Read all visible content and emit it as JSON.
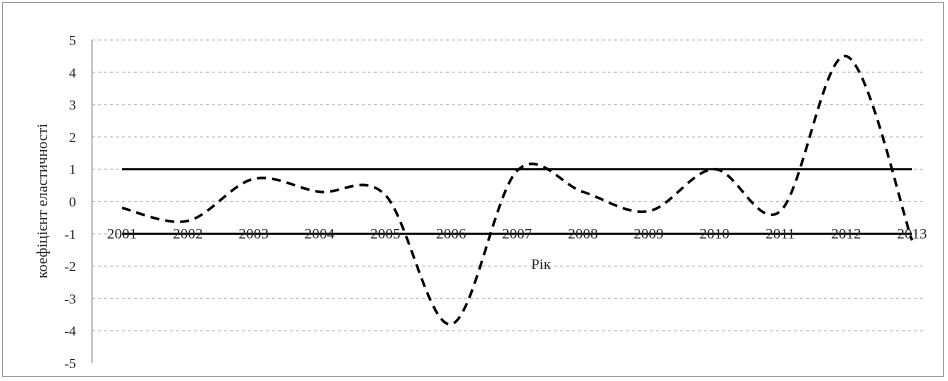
{
  "chart_data": {
    "type": "line",
    "title": "",
    "xlabel": "Рік",
    "ylabel": "коефіцієнт еластичності",
    "categories": [
      "2001",
      "2002",
      "2003",
      "2004",
      "2005",
      "2006",
      "2007",
      "2008",
      "2009",
      "2010",
      "2011",
      "2012",
      "2013"
    ],
    "ylim": [
      -5,
      5
    ],
    "yticks": [
      "5",
      "4",
      "3",
      "2",
      "1",
      "0",
      "-1",
      "-2",
      "-3",
      "-4",
      "-5"
    ],
    "grid": "horizontal dashed",
    "series": [
      {
        "style": "dashed",
        "values": [
          -0.2,
          -0.6,
          0.7,
          0.3,
          0.2,
          -3.8,
          0.95,
          0.3,
          -0.3,
          1.0,
          -0.3,
          4.5,
          -1.2
        ]
      }
    ],
    "reference_lines": [
      1,
      -1
    ]
  }
}
